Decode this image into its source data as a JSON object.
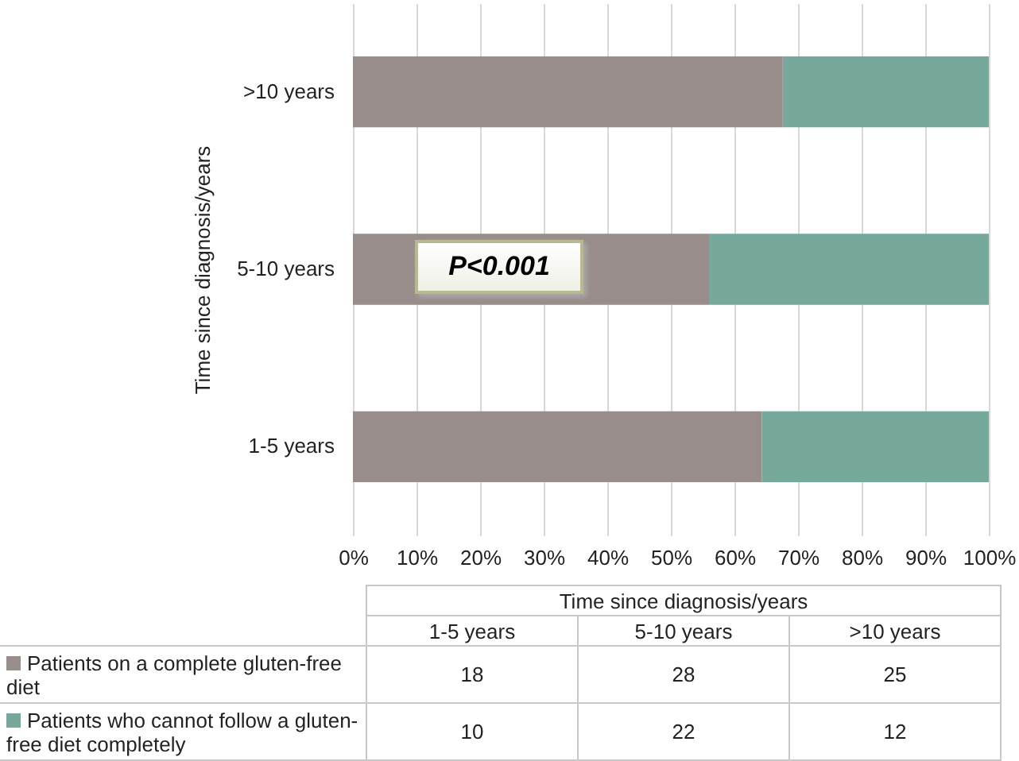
{
  "chart_data": {
    "type": "bar",
    "orientation": "horizontal",
    "stacked": true,
    "ylabel": "Time since diagnosis/years",
    "categories": [
      ">10 years",
      "5-10 years",
      "1-5 years"
    ],
    "series": [
      {
        "name": "Patients on a complete gluten-free diet",
        "color": "#998d8b",
        "values": [
          67.6,
          56,
          64.3
        ]
      },
      {
        "name": "Patients who cannot follow a gluten-free diet completely",
        "color": "#76a99c",
        "values": [
          32.4,
          44,
          35.7
        ]
      }
    ],
    "xlim": [
      0,
      100
    ],
    "xticks": [
      {
        "value": 0,
        "label": "0%"
      },
      {
        "value": 10,
        "label": "10%"
      },
      {
        "value": 20,
        "label": "20%"
      },
      {
        "value": 30,
        "label": "30%"
      },
      {
        "value": 40,
        "label": "40%"
      },
      {
        "value": 50,
        "label": "50%"
      },
      {
        "value": 60,
        "label": "60%"
      },
      {
        "value": 70,
        "label": "70%"
      },
      {
        "value": 80,
        "label": "80%"
      },
      {
        "value": 90,
        "label": "90%"
      },
      {
        "value": 100,
        "label": "100%"
      }
    ],
    "grid": "x",
    "legend": "bottom",
    "annotations": [
      "P<0.001",
      "Time since diagnosis/years",
      "18",
      "28",
      "25",
      "10",
      "22",
      "12"
    ]
  }
}
